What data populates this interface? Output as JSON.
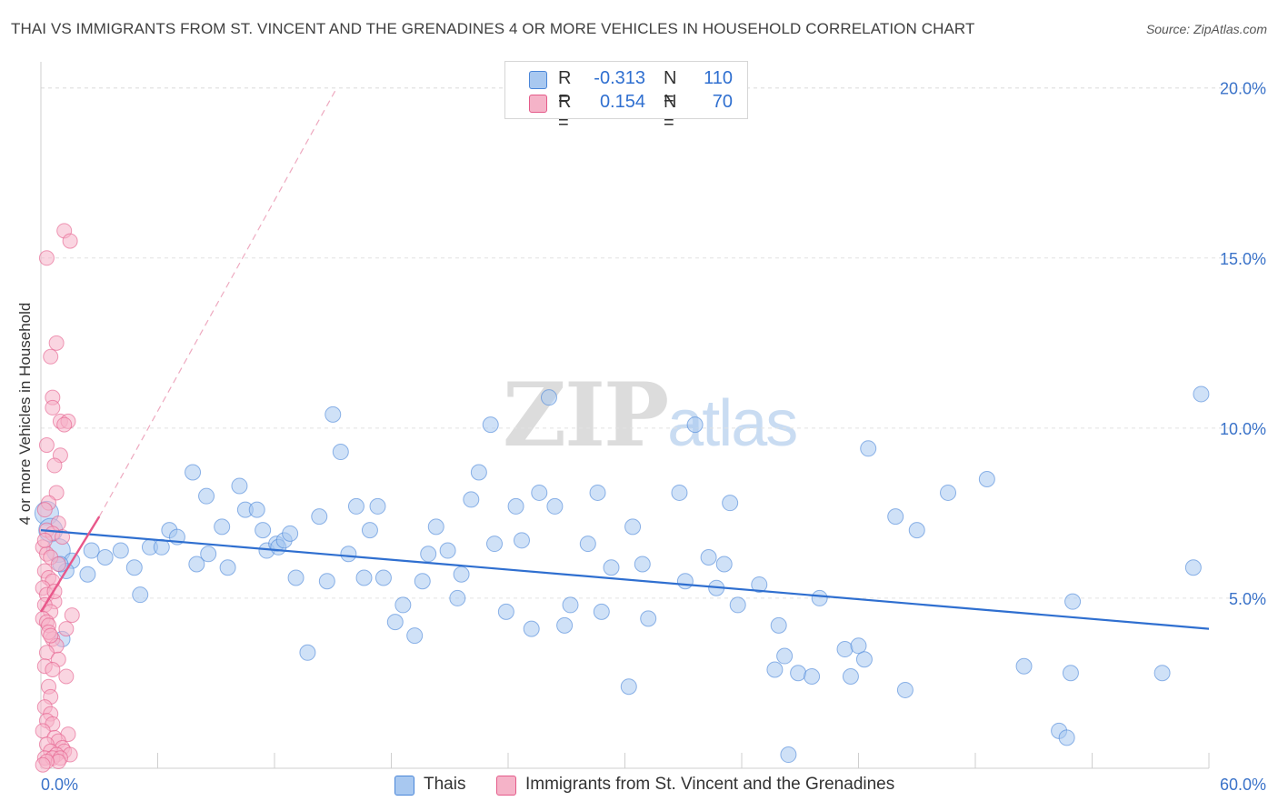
{
  "title": "THAI VS IMMIGRANTS FROM ST. VINCENT AND THE GRENADINES 4 OR MORE VEHICLES IN HOUSEHOLD CORRELATION CHART",
  "source": "Source: ZipAtlas.com",
  "watermark": {
    "zip": "ZIP",
    "atlas": "atlas"
  },
  "legend": {
    "rows": [
      {
        "r_label": "R =",
        "r_value": "-0.313",
        "n_label": "N =",
        "n_value": "110",
        "color": "#a8c8f0"
      },
      {
        "r_label": "R =",
        "r_value": "0.154",
        "n_label": "N =",
        "n_value": "70",
        "color": "#f5b3c8"
      }
    ]
  },
  "bottom_legend": [
    {
      "label": "Thais",
      "color": "#a8c8f0"
    },
    {
      "label": "Immigrants from St. Vincent and the Grenadines",
      "color": "#f5b3c8"
    }
  ],
  "chart_data": {
    "type": "scatter",
    "title": "THAI VS IMMIGRANTS FROM ST. VINCENT AND THE GRENADINES 4 OR MORE VEHICLES IN HOUSEHOLD CORRELATION CHART",
    "xlabel": "",
    "ylabel": "4 or more Vehicles in Household",
    "xlim": [
      0,
      60
    ],
    "ylim": [
      0,
      20.5
    ],
    "x_tick_labels": [
      "0.0%",
      "60.0%"
    ],
    "y_ticks": [
      5,
      10,
      15,
      20
    ],
    "y_tick_labels": [
      "5.0%",
      "10.0%",
      "15.0%",
      "20.0%"
    ],
    "grid": "horizontal dashed",
    "series": [
      {
        "name": "Thais",
        "color": "#a8c8f0",
        "stroke": "#4a86d8",
        "trend": {
          "x": [
            0,
            60
          ],
          "y": [
            7.0,
            4.1
          ],
          "color": "#2f6fd0"
        },
        "points": [
          [
            0.3,
            7.5
          ],
          [
            0.5,
            7.0
          ],
          [
            0.9,
            6.4
          ],
          [
            1.6,
            6.1
          ],
          [
            1.3,
            5.8
          ],
          [
            1.0,
            6.0
          ],
          [
            2.6,
            6.4
          ],
          [
            2.4,
            5.7
          ],
          [
            3.3,
            6.2
          ],
          [
            4.1,
            6.4
          ],
          [
            5.1,
            5.1
          ],
          [
            5.6,
            6.5
          ],
          [
            4.8,
            5.9
          ],
          [
            6.6,
            7.0
          ],
          [
            7.0,
            6.8
          ],
          [
            6.2,
            6.5
          ],
          [
            8.0,
            6.0
          ],
          [
            8.6,
            6.3
          ],
          [
            7.8,
            8.7
          ],
          [
            8.5,
            8.0
          ],
          [
            9.3,
            7.1
          ],
          [
            9.6,
            5.9
          ],
          [
            10.2,
            8.3
          ],
          [
            10.5,
            7.6
          ],
          [
            11.1,
            7.6
          ],
          [
            11.4,
            7.0
          ],
          [
            11.6,
            6.4
          ],
          [
            12.1,
            6.6
          ],
          [
            12.2,
            6.5
          ],
          [
            12.5,
            6.7
          ],
          [
            12.8,
            6.9
          ],
          [
            13.1,
            5.6
          ],
          [
            13.7,
            3.4
          ],
          [
            14.3,
            7.4
          ],
          [
            14.7,
            5.5
          ],
          [
            15.0,
            10.4
          ],
          [
            15.4,
            9.3
          ],
          [
            15.8,
            6.3
          ],
          [
            16.2,
            7.7
          ],
          [
            16.6,
            5.6
          ],
          [
            16.9,
            7.0
          ],
          [
            17.3,
            7.7
          ],
          [
            17.6,
            5.6
          ],
          [
            18.2,
            4.3
          ],
          [
            18.6,
            4.8
          ],
          [
            19.2,
            3.9
          ],
          [
            19.6,
            5.5
          ],
          [
            19.9,
            6.3
          ],
          [
            20.3,
            7.1
          ],
          [
            20.9,
            6.4
          ],
          [
            21.4,
            5.0
          ],
          [
            21.6,
            5.7
          ],
          [
            22.1,
            7.9
          ],
          [
            22.5,
            8.7
          ],
          [
            23.1,
            10.1
          ],
          [
            23.3,
            6.6
          ],
          [
            23.9,
            4.6
          ],
          [
            24.4,
            7.7
          ],
          [
            24.7,
            6.7
          ],
          [
            25.2,
            4.1
          ],
          [
            25.6,
            8.1
          ],
          [
            26.1,
            10.9
          ],
          [
            26.4,
            7.7
          ],
          [
            26.9,
            4.2
          ],
          [
            27.2,
            4.8
          ],
          [
            28.1,
            6.6
          ],
          [
            28.6,
            8.1
          ],
          [
            28.8,
            4.6
          ],
          [
            29.3,
            5.9
          ],
          [
            30.2,
            2.4
          ],
          [
            30.4,
            7.1
          ],
          [
            30.9,
            6.0
          ],
          [
            31.2,
            4.4
          ],
          [
            32.8,
            8.1
          ],
          [
            33.1,
            5.5
          ],
          [
            33.6,
            10.1
          ],
          [
            34.3,
            6.2
          ],
          [
            34.7,
            5.3
          ],
          [
            35.1,
            6.0
          ],
          [
            35.4,
            7.8
          ],
          [
            35.8,
            4.8
          ],
          [
            36.9,
            5.4
          ],
          [
            37.7,
            2.9
          ],
          [
            37.9,
            4.2
          ],
          [
            38.2,
            3.3
          ],
          [
            38.4,
            0.4
          ],
          [
            38.9,
            2.8
          ],
          [
            39.6,
            2.7
          ],
          [
            40.0,
            5.0
          ],
          [
            41.3,
            3.5
          ],
          [
            41.6,
            2.7
          ],
          [
            42.0,
            3.6
          ],
          [
            42.3,
            3.2
          ],
          [
            42.5,
            9.4
          ],
          [
            43.9,
            7.4
          ],
          [
            44.4,
            2.3
          ],
          [
            45.0,
            7.0
          ],
          [
            46.6,
            8.1
          ],
          [
            48.6,
            8.5
          ],
          [
            50.5,
            3.0
          ],
          [
            52.3,
            1.1
          ],
          [
            52.7,
            0.9
          ],
          [
            52.9,
            2.8
          ],
          [
            53.0,
            4.9
          ],
          [
            57.6,
            2.8
          ],
          [
            59.2,
            5.9
          ],
          [
            59.6,
            11.0
          ],
          [
            1.1,
            3.8
          ]
        ]
      },
      {
        "name": "Immigrants from St. Vincent and the Grenadines",
        "color": "#f5b3c8",
        "stroke": "#e45b8a",
        "trend": {
          "x": [
            0,
            3.0
          ],
          "y": [
            4.6,
            7.4
          ],
          "color": "#e8578a",
          "dashed_extension": {
            "x": [
              3.0,
              15.2
            ],
            "y": [
              7.4,
              20.0
            ]
          }
        },
        "points": [
          [
            1.2,
            15.8
          ],
          [
            1.5,
            15.5
          ],
          [
            0.3,
            15.0
          ],
          [
            0.8,
            12.5
          ],
          [
            0.5,
            12.1
          ],
          [
            0.6,
            10.9
          ],
          [
            0.6,
            10.6
          ],
          [
            1.0,
            10.2
          ],
          [
            1.4,
            10.2
          ],
          [
            1.2,
            10.1
          ],
          [
            0.3,
            9.5
          ],
          [
            1.0,
            9.2
          ],
          [
            0.7,
            8.9
          ],
          [
            0.8,
            8.1
          ],
          [
            0.4,
            7.8
          ],
          [
            0.2,
            7.6
          ],
          [
            0.9,
            7.2
          ],
          [
            0.3,
            7.0
          ],
          [
            0.6,
            6.9
          ],
          [
            1.1,
            6.8
          ],
          [
            0.1,
            6.5
          ],
          [
            0.3,
            6.3
          ],
          [
            0.5,
            6.2
          ],
          [
            0.9,
            6.0
          ],
          [
            0.2,
            5.8
          ],
          [
            0.4,
            5.6
          ],
          [
            0.6,
            5.5
          ],
          [
            0.1,
            5.3
          ],
          [
            0.3,
            5.1
          ],
          [
            0.7,
            4.9
          ],
          [
            0.2,
            4.8
          ],
          [
            0.5,
            4.6
          ],
          [
            0.1,
            4.4
          ],
          [
            0.3,
            4.3
          ],
          [
            0.4,
            4.2
          ],
          [
            1.3,
            4.1
          ],
          [
            0.6,
            3.8
          ],
          [
            0.8,
            3.6
          ],
          [
            0.3,
            3.4
          ],
          [
            0.9,
            3.2
          ],
          [
            0.2,
            3.0
          ],
          [
            0.6,
            2.9
          ],
          [
            1.3,
            2.7
          ],
          [
            0.4,
            2.4
          ],
          [
            0.5,
            2.1
          ],
          [
            0.2,
            1.8
          ],
          [
            0.5,
            1.6
          ],
          [
            0.3,
            1.4
          ],
          [
            0.6,
            1.3
          ],
          [
            0.1,
            1.1
          ],
          [
            1.4,
            1.0
          ],
          [
            0.7,
            0.9
          ],
          [
            0.9,
            0.8
          ],
          [
            0.3,
            0.7
          ],
          [
            1.1,
            0.6
          ],
          [
            0.5,
            0.5
          ],
          [
            1.2,
            0.5
          ],
          [
            0.8,
            0.4
          ],
          [
            1.5,
            0.4
          ],
          [
            0.2,
            0.3
          ],
          [
            0.6,
            0.3
          ],
          [
            1.0,
            0.3
          ],
          [
            0.9,
            0.2
          ],
          [
            0.3,
            0.2
          ],
          [
            0.1,
            0.1
          ],
          [
            0.4,
            4.0
          ],
          [
            0.7,
            5.2
          ],
          [
            0.2,
            6.7
          ],
          [
            1.6,
            4.5
          ],
          [
            0.5,
            3.9
          ]
        ]
      }
    ]
  }
}
